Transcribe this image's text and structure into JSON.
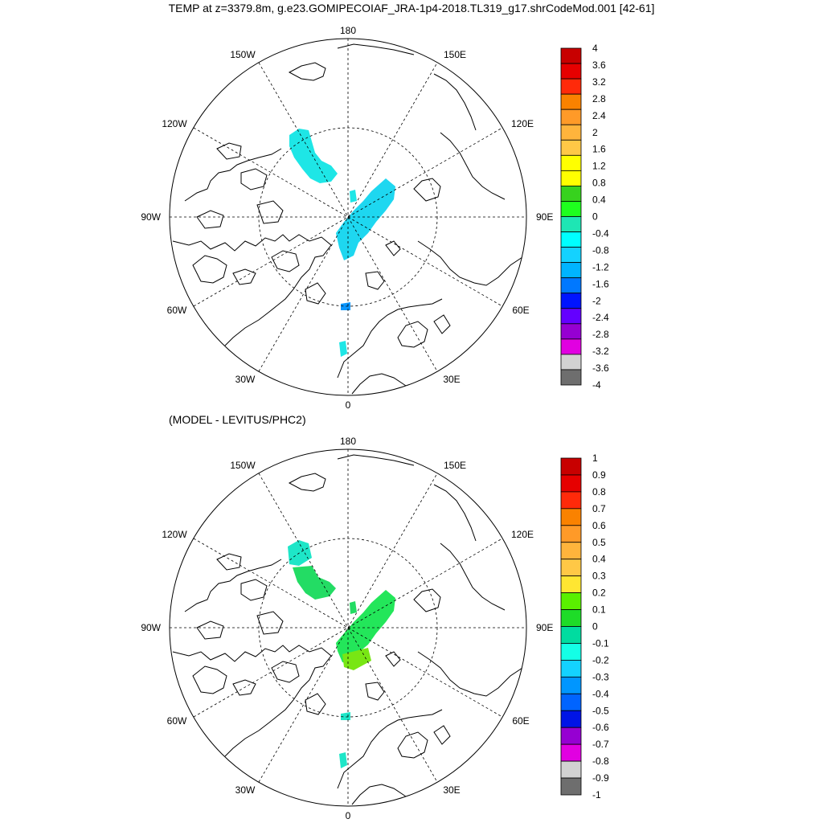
{
  "title": "TEMP at z=3379.8m, g.e23.GOMIPECOIAF_JRA-1p4-2018.TL319_g17.shrCodeMod.001 [42-61]",
  "subtitle": "(MODEL - LEVITUS/PHC2)",
  "lon_labels": [
    "180",
    "150E",
    "120E",
    "90E",
    "60E",
    "30E",
    "0",
    "30W",
    "60W",
    "90W",
    "120W",
    "150W"
  ],
  "colorbars": [
    {
      "labels": [
        "4",
        "3.6",
        "3.2",
        "2.8",
        "2.4",
        "2",
        "1.6",
        "1.2",
        "0.8",
        "0.4",
        "0",
        "-0.4",
        "-0.8",
        "-1.2",
        "-1.6",
        "-2",
        "-2.4",
        "-2.8",
        "-3.2",
        "-3.6",
        "-4"
      ],
      "colors": [
        "#c80000",
        "#e60000",
        "#ff2a0a",
        "#fa8200",
        "#ff9a28",
        "#ffb43c",
        "#ffc846",
        "#ffff00",
        "#ffff00",
        "#37d21e",
        "#1eff1e",
        "#1ee6b4",
        "#00ffff",
        "#14d2ff",
        "#00b4ff",
        "#0078ff",
        "#0014ff",
        "#6400ff",
        "#9600d2",
        "#e100e1",
        "#d2d2d2",
        "#6e6e6e"
      ]
    },
    {
      "labels": [
        "1",
        "0.9",
        "0.8",
        "0.7",
        "0.6",
        "0.5",
        "0.4",
        "0.3",
        "0.2",
        "0.1",
        "0",
        "-0.1",
        "-0.2",
        "-0.3",
        "-0.4",
        "-0.5",
        "-0.6",
        "-0.7",
        "-0.8",
        "-0.9",
        "-1"
      ],
      "colors": [
        "#c80000",
        "#e60000",
        "#ff2a0a",
        "#fa8200",
        "#ff9a28",
        "#ffb43c",
        "#ffc846",
        "#ffe632",
        "#5af000",
        "#1edc28",
        "#00dca0",
        "#14ffe6",
        "#14d2ff",
        "#0096ff",
        "#0064ff",
        "#0014e6",
        "#9600d2",
        "#e100e1",
        "#d2d2d2",
        "#6e6e6e"
      ]
    }
  ]
}
